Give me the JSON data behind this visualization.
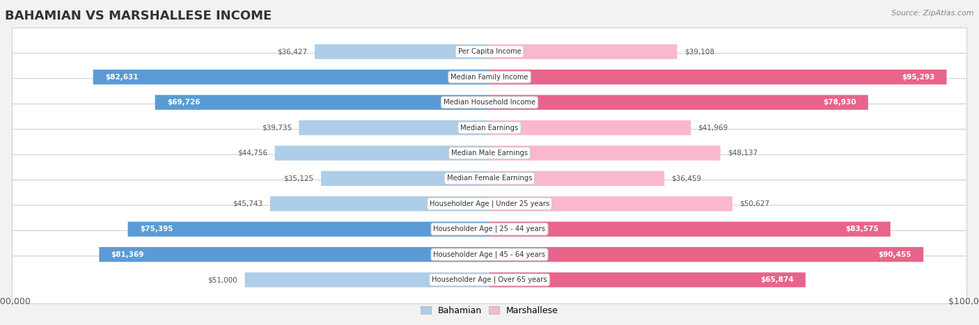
{
  "title": "BAHAMIAN VS MARSHALLESE INCOME",
  "source": "Source: ZipAtlas.com",
  "categories": [
    "Per Capita Income",
    "Median Family Income",
    "Median Household Income",
    "Median Earnings",
    "Median Male Earnings",
    "Median Female Earnings",
    "Householder Age | Under 25 years",
    "Householder Age | 25 - 44 years",
    "Householder Age | 45 - 64 years",
    "Householder Age | Over 65 years"
  ],
  "bahamian": [
    36427,
    82631,
    69726,
    39735,
    44756,
    35125,
    45743,
    75395,
    81369,
    51000
  ],
  "marshallese": [
    39108,
    95293,
    78930,
    41969,
    48137,
    36459,
    50627,
    83575,
    90455,
    65874
  ],
  "max_val": 100000,
  "bahamian_light_color": "#aecde8",
  "bahamian_dark_color": "#5b9bd5",
  "marshallese_light_color": "#f9b8ce",
  "marshallese_dark_color": "#e8648a",
  "bg_color": "#f2f2f2",
  "row_bg": "#ffffff",
  "threshold": 60000,
  "label_inside_color": "#ffffff",
  "label_outside_color": "#555555",
  "legend_bah_color": "#aecde8",
  "legend_mar_color": "#f9b8ce"
}
